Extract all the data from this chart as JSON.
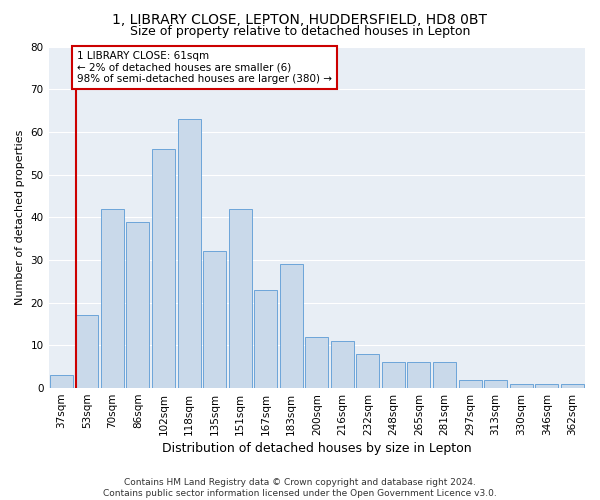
{
  "title": "1, LIBRARY CLOSE, LEPTON, HUDDERSFIELD, HD8 0BT",
  "subtitle": "Size of property relative to detached houses in Lepton",
  "xlabel": "Distribution of detached houses by size in Lepton",
  "ylabel": "Number of detached properties",
  "categories": [
    "37sqm",
    "53sqm",
    "70sqm",
    "86sqm",
    "102sqm",
    "118sqm",
    "135sqm",
    "151sqm",
    "167sqm",
    "183sqm",
    "200sqm",
    "216sqm",
    "232sqm",
    "248sqm",
    "265sqm",
    "281sqm",
    "297sqm",
    "313sqm",
    "330sqm",
    "346sqm",
    "362sqm"
  ],
  "values": [
    3,
    17,
    42,
    39,
    56,
    63,
    32,
    42,
    23,
    29,
    12,
    11,
    8,
    6,
    6,
    6,
    2,
    2,
    1,
    1,
    1
  ],
  "bar_color": "#c9d9ea",
  "bar_edge_color": "#5b9bd5",
  "background_color": "#e8eef5",
  "grid_color": "#ffffff",
  "annotation_line1": "1 LIBRARY CLOSE: 61sqm",
  "annotation_line2": "← 2% of detached houses are smaller (6)",
  "annotation_line3": "98% of semi-detached houses are larger (380) →",
  "vline_color": "#cc0000",
  "annotation_box_color": "#ffffff",
  "annotation_box_edge": "#cc0000",
  "ylim": [
    0,
    80
  ],
  "yticks": [
    0,
    10,
    20,
    30,
    40,
    50,
    60,
    70,
    80
  ],
  "footer_line1": "Contains HM Land Registry data © Crown copyright and database right 2024.",
  "footer_line2": "Contains public sector information licensed under the Open Government Licence v3.0.",
  "title_fontsize": 10,
  "subtitle_fontsize": 9,
  "xlabel_fontsize": 9,
  "ylabel_fontsize": 8,
  "tick_fontsize": 7.5,
  "annotation_fontsize": 7.5,
  "footer_fontsize": 6.5,
  "bar_width": 0.9
}
